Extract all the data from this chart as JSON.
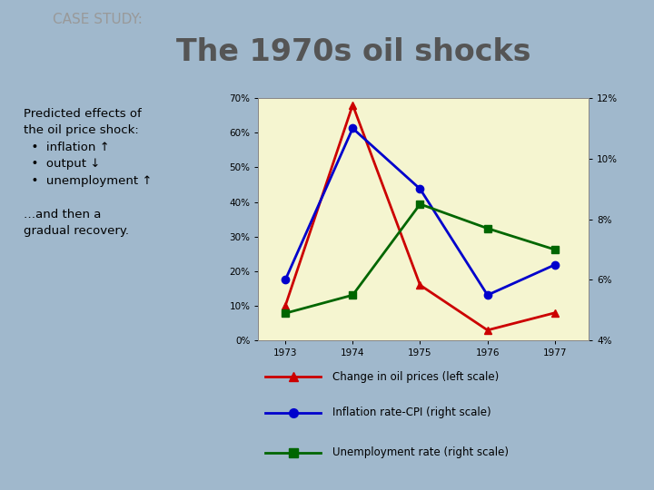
{
  "title_small": "CASE STUDY:",
  "title_large": "The 1970s oil shocks",
  "years": [
    1973,
    1974,
    1975,
    1976,
    1977
  ],
  "oil_prices": [
    0.1,
    0.68,
    0.16,
    0.03,
    0.08
  ],
  "inflation_cpi": [
    0.06,
    0.11,
    0.09,
    0.055,
    0.065
  ],
  "unemployment": [
    0.049,
    0.055,
    0.085,
    0.077,
    0.07
  ],
  "left_ylim": [
    0.0,
    0.7
  ],
  "left_yticks": [
    0.0,
    0.1,
    0.2,
    0.3,
    0.4,
    0.5,
    0.6,
    0.7
  ],
  "left_yticklabels": [
    "0%",
    "10%",
    "20%",
    "30%",
    "40%",
    "50%",
    "60%",
    "70%"
  ],
  "right_ylim": [
    0.04,
    0.12
  ],
  "right_yticks": [
    0.04,
    0.06,
    0.08,
    0.1,
    0.12
  ],
  "right_yticklabels": [
    "4%",
    "6%",
    "8%",
    "10%",
    "12%"
  ],
  "oil_color": "#cc0000",
  "inflation_color": "#0000cc",
  "unemployment_color": "#006600",
  "bg_slide": "#a0b8cc",
  "bg_chart": "#f5f5d0",
  "bg_text_box": "#ffffff",
  "orange_bar_color": "#cc6622",
  "text_title_small_color": "#999999",
  "text_title_large_color": "#555555",
  "legend_labels": [
    "Change in oil prices (left scale)",
    "Inflation rate-CPI (right scale)",
    "Unemployment rate (right scale)"
  ]
}
